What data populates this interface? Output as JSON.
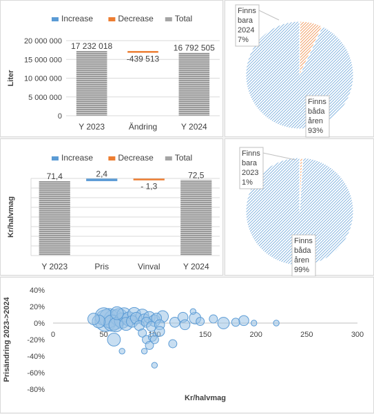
{
  "colors": {
    "increase": "#5b9bd5",
    "decrease": "#ed7d31",
    "total": "#a5a5a5",
    "pie": "#5b9bd5",
    "pie_small": "#ed7d31",
    "bubble": "#5b9bd5"
  },
  "legend": {
    "increase": "Increase",
    "decrease": "Decrease",
    "total": "Total"
  },
  "chart_data": [
    {
      "type": "bar",
      "subtype": "waterfall",
      "ylabel": "Liter",
      "categories": [
        "Y 2023",
        "Ändring",
        "Y 2024"
      ],
      "values": [
        17232018,
        -439513,
        16792505
      ],
      "kinds": [
        "total",
        "decrease",
        "total"
      ],
      "value_labels": [
        "17 232 018",
        "-439 513",
        "16 792 505"
      ],
      "ylim": [
        0,
        20000000
      ],
      "yticks": [
        0,
        5000000,
        10000000,
        15000000,
        20000000
      ],
      "ytick_labels": [
        "0",
        "5 000 000",
        "10 000 000",
        "15 000 000",
        "20 000 000"
      ],
      "legend": [
        "Increase",
        "Decrease",
        "Total"
      ],
      "legend_position": "top",
      "grid": true
    },
    {
      "type": "pie",
      "labels": [
        "Finns bara 2024",
        "Finns båda åren"
      ],
      "values": [
        7,
        93
      ],
      "percent_labels": [
        "7%",
        "93%"
      ],
      "label_lines": [
        [
          "Finns",
          "bara",
          "2024",
          "7%"
        ],
        [
          "Finns",
          "båda",
          "åren",
          "93%"
        ]
      ]
    },
    {
      "type": "bar",
      "subtype": "waterfall",
      "ylabel": "Kr/halvmag",
      "categories": [
        "Y 2023",
        "Pris",
        "Vinval",
        "Y 2024"
      ],
      "values": [
        71.4,
        2.4,
        -1.3,
        72.5
      ],
      "kinds": [
        "total",
        "increase",
        "decrease",
        "total"
      ],
      "value_labels": [
        "71,4",
        "2,4",
        "- 1,3",
        "72,5"
      ],
      "ylim": [
        0,
        74
      ],
      "legend": [
        "Increase",
        "Decrease",
        "Total"
      ],
      "legend_position": "top",
      "grid": true
    },
    {
      "type": "pie",
      "labels": [
        "Finns bara 2023",
        "Finns båda åren"
      ],
      "values": [
        1,
        99
      ],
      "percent_labels": [
        "1%",
        "99%"
      ],
      "label_lines": [
        [
          "Finns",
          "bara",
          "2023",
          "1%"
        ],
        [
          "Finns",
          "båda",
          "åren",
          "99%"
        ]
      ]
    },
    {
      "type": "scatter",
      "subtype": "bubble",
      "xlabel": "Kr/halvmag",
      "ylabel": "Prisändring 2023->2024",
      "xlim": [
        0,
        300
      ],
      "ylim": [
        -0.8,
        0.4
      ],
      "xticks": [
        0,
        50,
        100,
        150,
        200,
        250,
        300
      ],
      "yticks": [
        0.4,
        0.2,
        0.0,
        -0.2,
        -0.4,
        -0.6,
        -0.8
      ],
      "ytick_labels": [
        "40%",
        "20%",
        "0%",
        "-20%",
        "-40%",
        "-60%",
        "-80%"
      ],
      "points": [
        {
          "x": 40,
          "y": 0.05,
          "size": 4
        },
        {
          "x": 45,
          "y": 0.02,
          "size": 5
        },
        {
          "x": 50,
          "y": 0.08,
          "size": 9
        },
        {
          "x": 52,
          "y": 0.03,
          "size": 14
        },
        {
          "x": 55,
          "y": 0.06,
          "size": 11
        },
        {
          "x": 58,
          "y": 0.0,
          "size": 8
        },
        {
          "x": 60,
          "y": 0.04,
          "size": 12
        },
        {
          "x": 62,
          "y": -0.02,
          "size": 6
        },
        {
          "x": 65,
          "y": 0.07,
          "size": 9
        },
        {
          "x": 63,
          "y": 0.12,
          "size": 5
        },
        {
          "x": 68,
          "y": 0.03,
          "size": 7
        },
        {
          "x": 70,
          "y": 0.1,
          "size": 6
        },
        {
          "x": 72,
          "y": -0.01,
          "size": 5
        },
        {
          "x": 75,
          "y": 0.05,
          "size": 6
        },
        {
          "x": 78,
          "y": 0.02,
          "size": 4
        },
        {
          "x": 80,
          "y": 0.11,
          "size": 5
        },
        {
          "x": 82,
          "y": 0.06,
          "size": 4
        },
        {
          "x": 85,
          "y": -0.03,
          "size": 3
        },
        {
          "x": 88,
          "y": 0.09,
          "size": 5
        },
        {
          "x": 90,
          "y": 0.04,
          "size": 4
        },
        {
          "x": 92,
          "y": 0.01,
          "size": 3
        },
        {
          "x": 95,
          "y": 0.07,
          "size": 4
        },
        {
          "x": 97,
          "y": -0.04,
          "size": 3
        },
        {
          "x": 100,
          "y": 0.03,
          "size": 4
        },
        {
          "x": 102,
          "y": 0.06,
          "size": 3
        },
        {
          "x": 105,
          "y": -0.02,
          "size": 3
        },
        {
          "x": 108,
          "y": 0.08,
          "size": 4
        },
        {
          "x": 60,
          "y": -0.2,
          "size": 5
        },
        {
          "x": 88,
          "y": -0.12,
          "size": 2
        },
        {
          "x": 92,
          "y": -0.2,
          "size": 2
        },
        {
          "x": 98,
          "y": -0.17,
          "size": 2
        },
        {
          "x": 100,
          "y": -0.2,
          "size": 2
        },
        {
          "x": 105,
          "y": -0.1,
          "size": 3
        },
        {
          "x": 118,
          "y": -0.25,
          "size": 2
        },
        {
          "x": 68,
          "y": -0.34,
          "size": 1
        },
        {
          "x": 95,
          "y": -0.27,
          "size": 2
        },
        {
          "x": 90,
          "y": -0.34,
          "size": 1
        },
        {
          "x": 100,
          "y": -0.51,
          "size": 1
        },
        {
          "x": 120,
          "y": 0.01,
          "size": 3
        },
        {
          "x": 128,
          "y": 0.07,
          "size": 3
        },
        {
          "x": 130,
          "y": -0.02,
          "size": 3
        },
        {
          "x": 140,
          "y": 0.06,
          "size": 4
        },
        {
          "x": 145,
          "y": 0.02,
          "size": 2
        },
        {
          "x": 158,
          "y": 0.05,
          "size": 2
        },
        {
          "x": 168,
          "y": 0.0,
          "size": 4
        },
        {
          "x": 180,
          "y": 0.01,
          "size": 2
        },
        {
          "x": 188,
          "y": 0.03,
          "size": 3
        },
        {
          "x": 198,
          "y": 0.0,
          "size": 1
        },
        {
          "x": 220,
          "y": 0.0,
          "size": 1
        },
        {
          "x": 138,
          "y": 0.14,
          "size": 1
        }
      ]
    }
  ]
}
